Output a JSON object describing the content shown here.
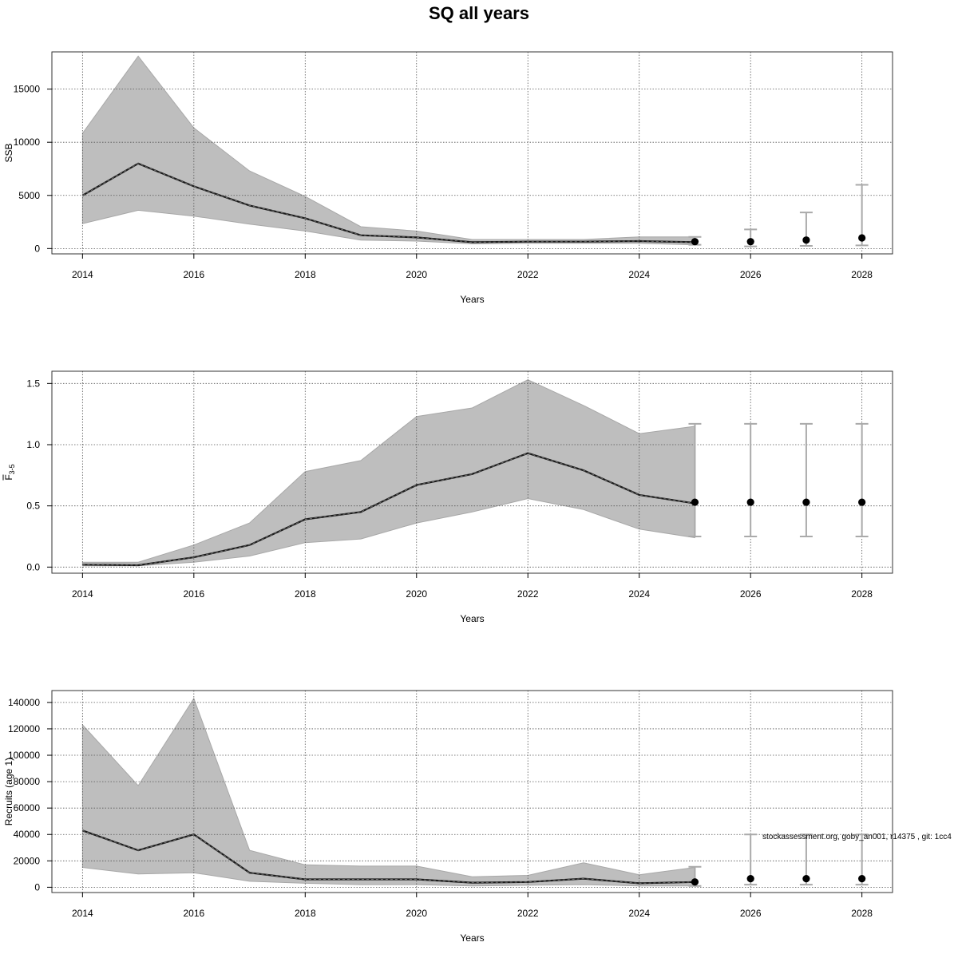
{
  "title": "SQ all years",
  "footnote": "stockassessment.org, goby_an001, r14375 , git: 1cc4",
  "colors": {
    "band": "#bebebe",
    "band_edge": "#a8a8a8",
    "line": "#1a1a1a",
    "point": "#000000",
    "errorbar": "#aaaaaa",
    "grid": "#555555",
    "frame": "#333333"
  },
  "chart_data": [
    {
      "type": "line",
      "title": "",
      "xlabel": "Years",
      "ylabel": "SSB",
      "ylabel_sub": "",
      "xlim": [
        2013.45,
        2028.55
      ],
      "ylim": [
        -500,
        18500
      ],
      "xticks": [
        2014,
        2016,
        2018,
        2020,
        2022,
        2024,
        2026,
        2028
      ],
      "yticks": [
        0,
        5000,
        10000,
        15000
      ],
      "grid": true,
      "estimate": {
        "x": [
          2014,
          2015,
          2016,
          2017,
          2018,
          2019,
          2020,
          2021,
          2022,
          2023,
          2024,
          2025
        ],
        "y": [
          5000,
          8000,
          5850,
          4050,
          2850,
          1250,
          1050,
          600,
          650,
          650,
          700,
          600
        ],
        "lower": [
          2350,
          3600,
          3050,
          2300,
          1650,
          800,
          700,
          450,
          500,
          500,
          500,
          350
        ],
        "upper": [
          10850,
          18100,
          11350,
          7300,
          4900,
          2050,
          1650,
          850,
          850,
          850,
          1100,
          1100
        ]
      },
      "forecast": {
        "x": [
          2025,
          2026,
          2027,
          2028
        ],
        "y": [
          650,
          650,
          800,
          1000
        ],
        "lower": [
          350,
          200,
          250,
          300
        ],
        "upper": [
          1100,
          1800,
          3400,
          6000
        ]
      }
    },
    {
      "type": "line",
      "title": "",
      "xlabel": "Years",
      "ylabel": "F",
      "ylabel_sub": "3-5",
      "xlim": [
        2013.45,
        2028.55
      ],
      "ylim": [
        -0.05,
        1.6
      ],
      "xticks": [
        2014,
        2016,
        2018,
        2020,
        2022,
        2024,
        2026,
        2028
      ],
      "yticks": [
        0.0,
        0.5,
        1.0,
        1.5
      ],
      "ytick_labels": [
        "0.0",
        "0.5",
        "1.0",
        "1.5"
      ],
      "grid": true,
      "estimate": {
        "x": [
          2014,
          2015,
          2016,
          2017,
          2018,
          2019,
          2020,
          2021,
          2022,
          2023,
          2024,
          2025
        ],
        "y": [
          0.02,
          0.015,
          0.08,
          0.18,
          0.39,
          0.45,
          0.67,
          0.76,
          0.93,
          0.79,
          0.59,
          0.52
        ],
        "lower": [
          0.01,
          0.01,
          0.04,
          0.09,
          0.2,
          0.23,
          0.36,
          0.45,
          0.56,
          0.47,
          0.31,
          0.24
        ],
        "upper": [
          0.04,
          0.04,
          0.18,
          0.36,
          0.78,
          0.87,
          1.23,
          1.3,
          1.53,
          1.32,
          1.09,
          1.15
        ]
      },
      "forecast": {
        "x": [
          2025,
          2026,
          2027,
          2028
        ],
        "y": [
          0.53,
          0.53,
          0.53,
          0.53
        ],
        "lower": [
          0.25,
          0.25,
          0.25,
          0.25
        ],
        "upper": [
          1.17,
          1.17,
          1.17,
          1.17
        ]
      }
    },
    {
      "type": "line",
      "title": "",
      "xlabel": "Years",
      "ylabel": "Recruits (age 1)",
      "ylabel_sub": "",
      "xlim": [
        2013.45,
        2028.55
      ],
      "ylim": [
        -4000,
        149000
      ],
      "xticks": [
        2014,
        2016,
        2018,
        2020,
        2022,
        2024,
        2026,
        2028
      ],
      "yticks": [
        0,
        20000,
        40000,
        60000,
        80000,
        100000,
        120000,
        140000
      ],
      "grid": true,
      "estimate": {
        "x": [
          2014,
          2015,
          2016,
          2017,
          2018,
          2019,
          2020,
          2021,
          2022,
          2023,
          2024,
          2025
        ],
        "y": [
          43000,
          28000,
          40000,
          11000,
          6000,
          6000,
          6000,
          3500,
          4000,
          6500,
          3000,
          4000
        ],
        "lower": [
          15000,
          10000,
          11000,
          4500,
          3000,
          2000,
          2000,
          1000,
          1500,
          2000,
          1000,
          1000
        ],
        "upper": [
          123000,
          77000,
          143000,
          28000,
          17000,
          16000,
          16000,
          8000,
          9000,
          18500,
          9500,
          15000
        ]
      },
      "forecast": {
        "x": [
          2025,
          2026,
          2027,
          2028
        ],
        "y": [
          4000,
          6500,
          6500,
          6500
        ],
        "lower": [
          1000,
          2000,
          2000,
          2000
        ],
        "upper": [
          15500,
          40000,
          40000,
          40000
        ]
      }
    }
  ]
}
